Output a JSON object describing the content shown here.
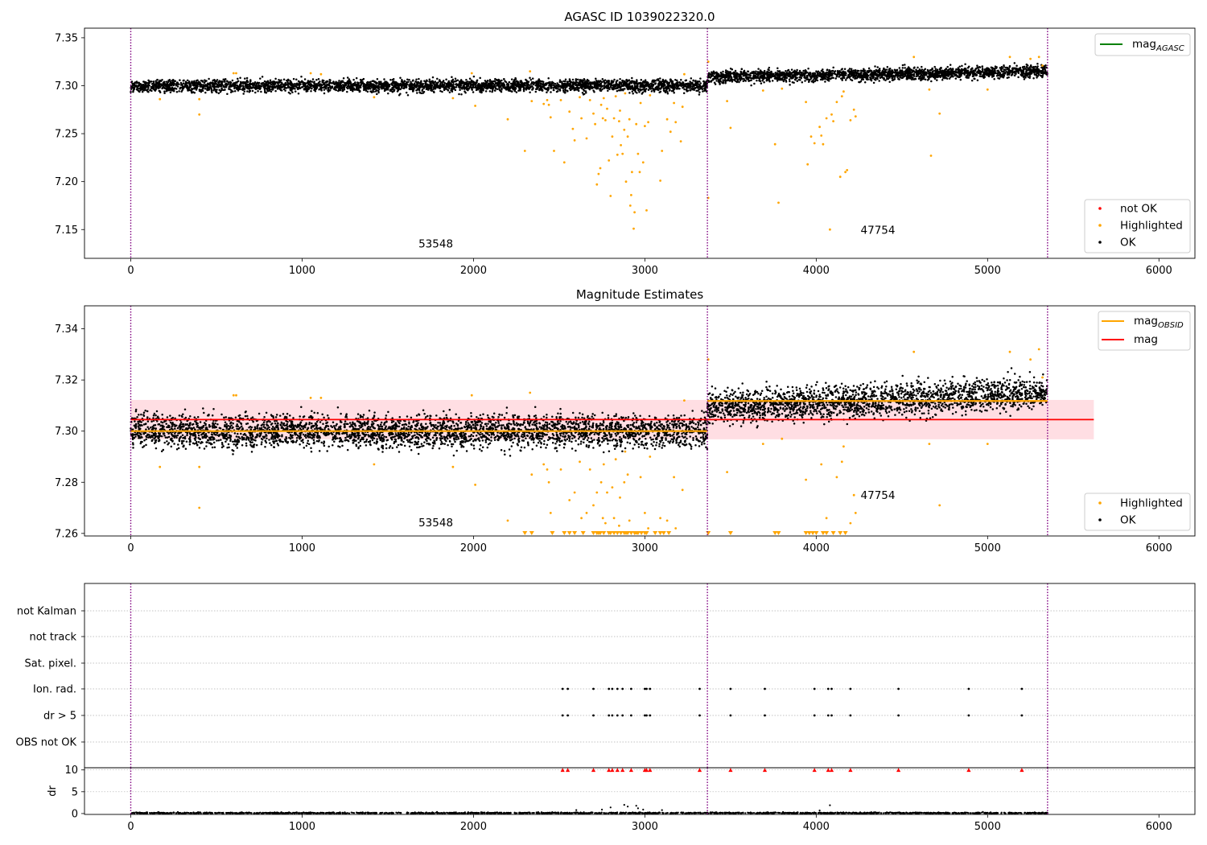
{
  "figure": {
    "background": "#ffffff",
    "colors": {
      "ok": "#000000",
      "highlighted": "#ffa500",
      "not_ok": "#ff0000",
      "mag_agasc": "#008000",
      "mag": "#ff0000",
      "mag_obsid": "#ffa500",
      "band": "#ffb6c1",
      "boundary": "#800080"
    }
  },
  "chart_data": [
    {
      "id": "agasc",
      "type": "scatter",
      "title": "AGASC ID 1039022320.0",
      "xlim": [
        -270,
        6210
      ],
      "ylim": [
        7.12,
        7.36
      ],
      "x_ticks": [
        0,
        1000,
        2000,
        3000,
        4000,
        5000,
        6000
      ],
      "y_ticks": [
        7.15,
        7.2,
        7.25,
        7.3,
        7.35
      ],
      "boundaries": [
        0,
        3365,
        5350
      ],
      "observations": [
        {
          "obsid": "53548",
          "x_start": 0,
          "x_end": 3365,
          "ok_mean": 7.3,
          "ok_spread": 0.0045
        },
        {
          "obsid": "47754",
          "x_start": 3365,
          "x_end": 5350,
          "ok_mean_start": 7.309,
          "ok_mean_end": 7.315,
          "ok_spread": 0.0045
        }
      ],
      "legend_upper": {
        "position": "upper right",
        "entries": [
          {
            "label": "mag",
            "sub": "AGASC",
            "kind": "line",
            "color": "#008000"
          }
        ]
      },
      "legend_lower": {
        "position": "lower right",
        "entries": [
          {
            "label": "not OK",
            "kind": "dot",
            "color": "#ff0000"
          },
          {
            "label": "Highlighted",
            "kind": "dot",
            "color": "#ffa500"
          },
          {
            "label": "OK",
            "kind": "dot",
            "color": "#000000"
          }
        ]
      },
      "highlighted_points": [
        [
          170,
          7.286
        ],
        [
          400,
          7.27
        ],
        [
          400,
          7.286
        ],
        [
          600,
          7.313
        ],
        [
          615,
          7.313
        ],
        [
          1050,
          7.313
        ],
        [
          1110,
          7.312
        ],
        [
          1420,
          7.288
        ],
        [
          1880,
          7.287
        ],
        [
          1990,
          7.313
        ],
        [
          2010,
          7.279
        ],
        [
          2200,
          7.265
        ],
        [
          2300,
          7.232
        ],
        [
          2330,
          7.315
        ],
        [
          2340,
          7.284
        ],
        [
          2410,
          7.281
        ],
        [
          2430,
          7.285
        ],
        [
          2440,
          7.28
        ],
        [
          2450,
          7.267
        ],
        [
          2470,
          7.232
        ],
        [
          2510,
          7.285
        ],
        [
          2530,
          7.22
        ],
        [
          2560,
          7.273
        ],
        [
          2580,
          7.255
        ],
        [
          2590,
          7.243
        ],
        [
          2620,
          7.288
        ],
        [
          2630,
          7.266
        ],
        [
          2660,
          7.245
        ],
        [
          2680,
          7.285
        ],
        [
          2700,
          7.271
        ],
        [
          2710,
          7.26
        ],
        [
          2720,
          7.197
        ],
        [
          2730,
          7.208
        ],
        [
          2740,
          7.214
        ],
        [
          2745,
          7.28
        ],
        [
          2755,
          7.266
        ],
        [
          2760,
          7.287
        ],
        [
          2770,
          7.264
        ],
        [
          2780,
          7.276
        ],
        [
          2790,
          7.222
        ],
        [
          2800,
          7.185
        ],
        [
          2810,
          7.247
        ],
        [
          2820,
          7.266
        ],
        [
          2830,
          7.289
        ],
        [
          2840,
          7.228
        ],
        [
          2850,
          7.263
        ],
        [
          2855,
          7.274
        ],
        [
          2860,
          7.238
        ],
        [
          2870,
          7.229
        ],
        [
          2880,
          7.254
        ],
        [
          2885,
          7.292
        ],
        [
          2890,
          7.2
        ],
        [
          2900,
          7.247
        ],
        [
          2910,
          7.265
        ],
        [
          2915,
          7.175
        ],
        [
          2920,
          7.186
        ],
        [
          2925,
          7.21
        ],
        [
          2935,
          7.151
        ],
        [
          2940,
          7.168
        ],
        [
          2950,
          7.26
        ],
        [
          2960,
          7.229
        ],
        [
          2970,
          7.21
        ],
        [
          2975,
          7.282
        ],
        [
          2990,
          7.22
        ],
        [
          3000,
          7.258
        ],
        [
          3010,
          7.17
        ],
        [
          3020,
          7.262
        ],
        [
          3030,
          7.29
        ],
        [
          3090,
          7.201
        ],
        [
          3100,
          7.232
        ],
        [
          3130,
          7.265
        ],
        [
          3150,
          7.252
        ],
        [
          3170,
          7.282
        ],
        [
          3180,
          7.262
        ],
        [
          3210,
          7.242
        ],
        [
          3220,
          7.278
        ],
        [
          3230,
          7.312
        ],
        [
          3370,
          7.325
        ],
        [
          3370,
          7.183
        ],
        [
          3480,
          7.284
        ],
        [
          3500,
          7.256
        ],
        [
          3690,
          7.295
        ],
        [
          3760,
          7.239
        ],
        [
          3780,
          7.178
        ],
        [
          3800,
          7.297
        ],
        [
          3940,
          7.283
        ],
        [
          3950,
          7.218
        ],
        [
          3970,
          7.247
        ],
        [
          3990,
          7.24
        ],
        [
          4020,
          7.257
        ],
        [
          4030,
          7.248
        ],
        [
          4040,
          7.239
        ],
        [
          4060,
          7.266
        ],
        [
          4080,
          7.15
        ],
        [
          4090,
          7.27
        ],
        [
          4100,
          7.263
        ],
        [
          4120,
          7.283
        ],
        [
          4140,
          7.205
        ],
        [
          4150,
          7.289
        ],
        [
          4160,
          7.294
        ],
        [
          4170,
          7.21
        ],
        [
          4180,
          7.212
        ],
        [
          4200,
          7.264
        ],
        [
          4220,
          7.275
        ],
        [
          4230,
          7.268
        ],
        [
          4570,
          7.33
        ],
        [
          4660,
          7.296
        ],
        [
          4670,
          7.227
        ],
        [
          4720,
          7.271
        ],
        [
          5000,
          7.296
        ],
        [
          5130,
          7.33
        ],
        [
          5250,
          7.328
        ],
        [
          5300,
          7.33
        ],
        [
          5320,
          7.321
        ]
      ],
      "not_ok_points": [],
      "labels": [
        {
          "text": "53548",
          "x": 1780,
          "y": 7.1312
        },
        {
          "text": "47754",
          "x": 4360,
          "y": 7.1455
        }
      ]
    },
    {
      "id": "magest",
      "type": "scatter",
      "title": "Magnitude Estimates",
      "xlim": [
        -270,
        6210
      ],
      "ylim": [
        7.259,
        7.349
      ],
      "x_ticks": [
        0,
        1000,
        2000,
        3000,
        4000,
        5000,
        6000
      ],
      "y_ticks": [
        7.26,
        7.28,
        7.3,
        7.32,
        7.34
      ],
      "boundaries": [
        0,
        3365,
        5350
      ],
      "mag": {
        "value": 7.3045,
        "band": [
          7.2968,
          7.3122
        ],
        "x_range": [
          0,
          5620
        ]
      },
      "mag_obsid": [
        {
          "obsid": "53548",
          "x_range": [
            0,
            3365
          ],
          "value": 7.3
        },
        {
          "obsid": "47754",
          "x_range": [
            3365,
            5350
          ],
          "value": 7.3118
        }
      ],
      "observations": [
        {
          "obsid": "53548",
          "x_start": 0,
          "x_end": 3365,
          "ok_mean": 7.3,
          "ok_spread": 0.0045
        },
        {
          "obsid": "47754",
          "x_start": 3365,
          "x_end": 5350,
          "ok_mean_start": 7.309,
          "ok_mean_end": 7.315,
          "ok_spread": 0.0045
        }
      ],
      "legend_upper": {
        "position": "upper right",
        "entries": [
          {
            "label": "mag",
            "sub": "OBSID",
            "kind": "line",
            "color": "#ffa500"
          },
          {
            "label": "mag",
            "kind": "line",
            "color": "#ff0000"
          }
        ]
      },
      "legend_lower": {
        "position": "lower right",
        "entries": [
          {
            "label": "Highlighted",
            "kind": "dot",
            "color": "#ffa500"
          },
          {
            "label": "OK",
            "kind": "dot",
            "color": "#000000"
          }
        ]
      },
      "highlighted_points": [
        [
          170,
          7.286
        ],
        [
          400,
          7.27
        ],
        [
          400,
          7.286
        ],
        [
          600,
          7.314
        ],
        [
          615,
          7.314
        ],
        [
          1050,
          7.313
        ],
        [
          1110,
          7.313
        ],
        [
          1420,
          7.287
        ],
        [
          1880,
          7.286
        ],
        [
          1990,
          7.314
        ],
        [
          2010,
          7.279
        ],
        [
          2200,
          7.265
        ],
        [
          2330,
          7.315
        ],
        [
          2340,
          7.283
        ],
        [
          2410,
          7.287
        ],
        [
          2430,
          7.285
        ],
        [
          2440,
          7.28
        ],
        [
          2450,
          7.268
        ],
        [
          2510,
          7.285
        ],
        [
          2560,
          7.273
        ],
        [
          2590,
          7.276
        ],
        [
          2620,
          7.288
        ],
        [
          2630,
          7.266
        ],
        [
          2660,
          7.268
        ],
        [
          2680,
          7.285
        ],
        [
          2700,
          7.271
        ],
        [
          2720,
          7.276
        ],
        [
          2745,
          7.28
        ],
        [
          2755,
          7.266
        ],
        [
          2760,
          7.287
        ],
        [
          2770,
          7.264
        ],
        [
          2780,
          7.276
        ],
        [
          2810,
          7.278
        ],
        [
          2820,
          7.266
        ],
        [
          2830,
          7.289
        ],
        [
          2850,
          7.263
        ],
        [
          2855,
          7.274
        ],
        [
          2880,
          7.28
        ],
        [
          2885,
          7.292
        ],
        [
          2900,
          7.283
        ],
        [
          2910,
          7.265
        ],
        [
          2950,
          7.26
        ],
        [
          2975,
          7.282
        ],
        [
          3000,
          7.268
        ],
        [
          3020,
          7.262
        ],
        [
          3030,
          7.29
        ],
        [
          3090,
          7.266
        ],
        [
          3130,
          7.265
        ],
        [
          3170,
          7.282
        ],
        [
          3180,
          7.262
        ],
        [
          3220,
          7.277
        ],
        [
          3230,
          7.312
        ],
        [
          3370,
          7.328
        ],
        [
          3480,
          7.284
        ],
        [
          3690,
          7.295
        ],
        [
          3800,
          7.297
        ],
        [
          3940,
          7.281
        ],
        [
          4030,
          7.287
        ],
        [
          4060,
          7.266
        ],
        [
          4120,
          7.282
        ],
        [
          4150,
          7.288
        ],
        [
          4160,
          7.294
        ],
        [
          4200,
          7.264
        ],
        [
          4220,
          7.275
        ],
        [
          4230,
          7.268
        ],
        [
          4570,
          7.331
        ],
        [
          4660,
          7.295
        ],
        [
          4720,
          7.271
        ],
        [
          5000,
          7.295
        ],
        [
          5130,
          7.331
        ],
        [
          5250,
          7.328
        ],
        [
          5300,
          7.332
        ],
        [
          5320,
          7.321
        ]
      ],
      "clipped_below": [
        2300,
        2340,
        2460,
        2530,
        2560,
        2590,
        2640,
        2700,
        2720,
        2730,
        2740,
        2760,
        2790,
        2800,
        2820,
        2840,
        2860,
        2880,
        2890,
        2900,
        2920,
        2940,
        2960,
        2980,
        3000,
        3010,
        3060,
        3090,
        3110,
        3140,
        3370,
        3500,
        3760,
        3780,
        3940,
        3960,
        3980,
        4000,
        4040,
        4060,
        4100,
        4140,
        4170
      ],
      "labels": [
        {
          "text": "53548",
          "x": 1780,
          "y": 7.2627
        },
        {
          "text": "47754",
          "x": 4360,
          "y": 7.2735
        }
      ]
    },
    {
      "id": "flags",
      "type": "scatter",
      "title": "",
      "xlim": [
        -270,
        6210
      ],
      "boundaries": [
        0,
        3365,
        5350
      ],
      "categories": [
        "not Kalman",
        "not track",
        "Sat. pixel.",
        "Ion. rad.",
        "dr > 5",
        "OBS not OK"
      ],
      "flag_x": {
        "Ion. rad.": [
          2520,
          2550,
          2700,
          2790,
          2810,
          2840,
          2870,
          2920,
          3000,
          3010,
          3030,
          3320,
          3500,
          3700,
          3990,
          4070,
          4090,
          4200,
          4480,
          4890,
          5200
        ],
        "dr > 5": [
          2520,
          2550,
          2700,
          2790,
          2810,
          2840,
          2870,
          2920,
          3000,
          3010,
          3030,
          3320,
          3500,
          3700,
          3990,
          4070,
          4090,
          4200,
          4480,
          4890,
          5200
        ]
      }
    },
    {
      "id": "dr",
      "type": "scatter",
      "title": "",
      "ylabel": "dr",
      "xlim": [
        -270,
        6210
      ],
      "ylim": [
        -0.2,
        10.5
      ],
      "x_ticks": [
        0,
        1000,
        2000,
        3000,
        4000,
        5000,
        6000
      ],
      "y_ticks": [
        0,
        5,
        10
      ],
      "boundaries": [
        0,
        3365,
        5350
      ],
      "clipped_above_x": [
        2520,
        2550,
        2700,
        2790,
        2810,
        2840,
        2870,
        2920,
        3000,
        3010,
        3030,
        3320,
        3500,
        3700,
        3990,
        4070,
        4090,
        4200,
        4480,
        4890,
        5200
      ],
      "elevated_points": [
        [
          2800,
          1.4
        ],
        [
          2880,
          2.0
        ],
        [
          2900,
          1.6
        ],
        [
          2960,
          1.2
        ],
        [
          2990,
          0.9
        ],
        [
          2600,
          0.8
        ],
        [
          3100,
          0.8
        ],
        [
          4080,
          1.9
        ],
        [
          4020,
          0.7
        ],
        [
          2750,
          0.9
        ],
        [
          2950,
          1.8
        ]
      ]
    }
  ]
}
